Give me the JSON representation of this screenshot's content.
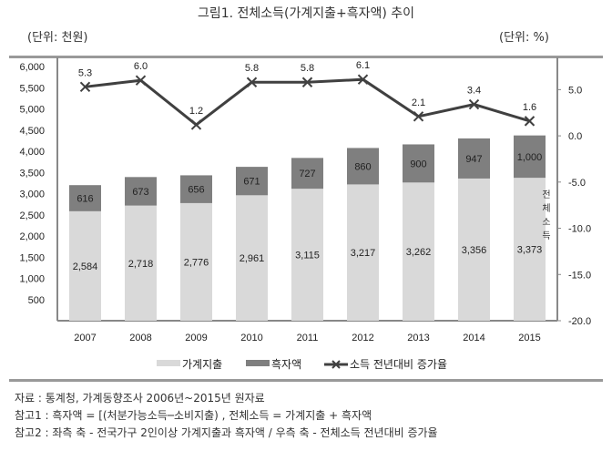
{
  "title": "그림1. 전체소득(가계지출+흑자액) 추이",
  "unit_left": "(단위: 천원)",
  "unit_right": "(단위: %)",
  "chart_data": {
    "type": "bar+line",
    "categories": [
      "2007",
      "2008",
      "2009",
      "2010",
      "2011",
      "2012",
      "2013",
      "2014",
      "2015"
    ],
    "series": [
      {
        "name": "가계지출",
        "type": "stacked-bar",
        "axis": "left",
        "color": "#d9d9d9",
        "values": [
          2584,
          2718,
          2776,
          2961,
          3115,
          3217,
          3262,
          3356,
          3373
        ],
        "labels": [
          "2,584",
          "2,718",
          "2,776",
          "2,961",
          "3,115",
          "3,217",
          "3,262",
          "3,356",
          "3,373"
        ]
      },
      {
        "name": "흑자액",
        "type": "stacked-bar",
        "axis": "left",
        "color": "#7f7f7f",
        "values": [
          616,
          673,
          656,
          671,
          727,
          860,
          900,
          947,
          1000
        ],
        "labels": [
          "616",
          "673",
          "656",
          "671",
          "727",
          "860",
          "900",
          "947",
          "1,000"
        ]
      },
      {
        "name": "소득 전년대비 증가율",
        "type": "line",
        "axis": "right",
        "color": "#404040",
        "marker": "x",
        "values": [
          5.3,
          6.0,
          1.2,
          5.8,
          5.8,
          6.1,
          2.1,
          3.4,
          1.6
        ],
        "labels": [
          "5.3",
          "6.0",
          "1.2",
          "5.8",
          "5.8",
          "6.1",
          "2.1",
          "3.4",
          "1.6"
        ]
      }
    ],
    "left_axis": {
      "ylim": [
        0,
        6000
      ],
      "ticks": [
        "500",
        "1,000",
        "1,500",
        "2,000",
        "2,500",
        "3,000",
        "3,500",
        "4,000",
        "4,500",
        "5,000",
        "5,500",
        "6,000"
      ]
    },
    "right_axis": {
      "ylim": [
        -20,
        7.5
      ],
      "ticks": [
        "5.0",
        "0.0",
        "-5.0",
        "-10.0",
        "-15.0",
        "-20.0"
      ]
    },
    "annotation": "전체소득",
    "legend": "bottom",
    "grid": false
  },
  "notes": [
    "자료 : 통계청, 가계동향조사 2006년~2015년 원자료",
    "참고1 : 흑자액 = [(처분가능소득─소비지출) , 전체소득 = 가계지출 + 흑자액",
    "참고2 : 좌측 축 - 전국가구 2인이상 가계지출과 흑자액 / 우측 축 - 전체소득 전년대비 증가율"
  ]
}
